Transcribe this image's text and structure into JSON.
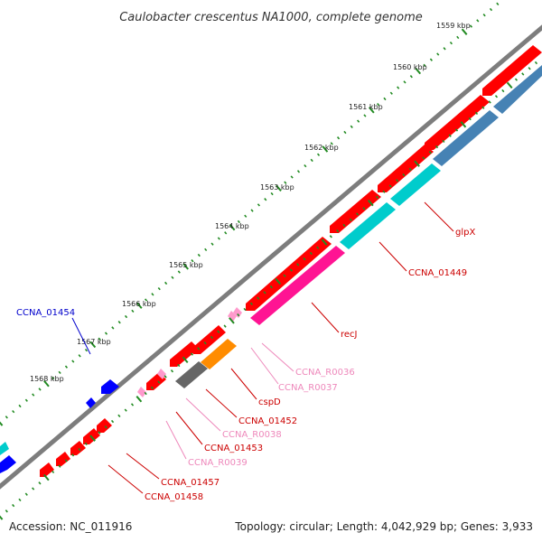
{
  "title": "Caulobacter crescentus NA1000, complete genome",
  "footer": {
    "accession": "Accession: NC_011916",
    "summary": "Topology: circular; Length: 4,042,929 bp; Genes: 3,933"
  },
  "colors": {
    "backbone": "#808080",
    "cds_forward": "#ff0000",
    "cds_reverse": "#0000ff",
    "rna": "#ff99cc",
    "scale_dots": "#228b22",
    "cds_function_1": "#4682b4",
    "cds_function_2": "#00cccc",
    "cds_function_3": "#ff1493",
    "cds_function_4": "#ff8c00",
    "cds_function_5": "#666666"
  },
  "scale": {
    "ticks": [
      "1559 kbp",
      "1560 kbp",
      "1561 kbp",
      "1562 kbp",
      "1563 kbp",
      "1564 kbp",
      "1565 kbp",
      "1566 kbp",
      "1567 kbp",
      "1568 kbp"
    ]
  },
  "labels": [
    {
      "text": "CCNA_01454",
      "color": "#0000cc"
    },
    {
      "text": "glpX",
      "color": "#cc0000"
    },
    {
      "text": "CCNA_01449",
      "color": "#cc0000"
    },
    {
      "text": "recJ",
      "color": "#cc0000"
    },
    {
      "text": "CCNA_R0036",
      "color": "#ee88bb"
    },
    {
      "text": "CCNA_R0037",
      "color": "#ee88bb"
    },
    {
      "text": "cspD",
      "color": "#cc0000"
    },
    {
      "text": "CCNA_01452",
      "color": "#cc0000"
    },
    {
      "text": "CCNA_R0038",
      "color": "#ee88bb"
    },
    {
      "text": "CCNA_01453",
      "color": "#cc0000"
    },
    {
      "text": "CCNA_R0039",
      "color": "#ee88bb"
    },
    {
      "text": "CCNA_01457",
      "color": "#cc0000"
    },
    {
      "text": "CCNA_01458",
      "color": "#cc0000"
    }
  ]
}
